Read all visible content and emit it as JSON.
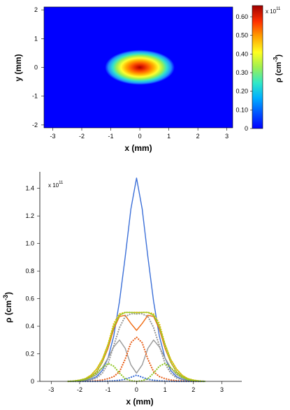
{
  "chart_data": [
    {
      "type": "heatmap",
      "xlabel": "x (mm)",
      "ylabel": "y (mm)",
      "xlim": [
        -3.3,
        3.2
      ],
      "ylim": [
        -2.1,
        2.1
      ],
      "xticks": [
        "-3",
        "-2",
        "-1",
        "0",
        "1",
        "2",
        "3"
      ],
      "yticks": [
        "-2",
        "-1",
        "0",
        "1",
        "2"
      ],
      "colormap": "jet",
      "colorbar": {
        "label": "ρ (cm",
        "label_sup": "-3",
        "label_end": ")",
        "multiplier": "x 10",
        "multiplier_exp": "11",
        "range": [
          0,
          0.66
        ],
        "ticks": [
          "0",
          "0.10",
          "0.20",
          "0.30",
          "0.40",
          "0.50",
          "0.60"
        ]
      },
      "blob": {
        "center_x": 0,
        "center_y": 0,
        "sigma_x": 0.75,
        "sigma_y": 0.38,
        "peak": 0.66,
        "background_color": "#0000ff"
      }
    },
    {
      "type": "line",
      "xlabel": "x (mm)",
      "ylabel": "ρ (cm",
      "ylabel_sup": "-3",
      "ylabel_end": ")",
      "multiplier": "x 10",
      "multiplier_exp": "11",
      "xlim": [
        -3.4,
        3.7
      ],
      "ylim": [
        0,
        1.52
      ],
      "xticks": [
        "-3",
        "-2",
        "-1",
        "0",
        "1",
        "2",
        "3"
      ],
      "yticks": [
        "0",
        "0.2",
        "0.4",
        "0.6",
        "0.8",
        "1.0",
        "1.2",
        "1.4"
      ],
      "x": [
        -2.4,
        -2.2,
        -2.0,
        -1.8,
        -1.6,
        -1.4,
        -1.2,
        -1.0,
        -0.8,
        -0.6,
        -0.4,
        -0.2,
        0.0,
        0.2,
        0.4,
        0.6,
        0.8,
        1.0,
        1.2,
        1.4,
        1.6,
        1.8,
        2.0,
        2.2,
        2.4
      ],
      "series": [
        {
          "color": "#3b6fd8",
          "style": "solid",
          "values": [
            0.0,
            0.0,
            0.002,
            0.006,
            0.015,
            0.035,
            0.08,
            0.17,
            0.33,
            0.58,
            0.9,
            1.25,
            1.475,
            1.25,
            0.9,
            0.58,
            0.33,
            0.17,
            0.08,
            0.035,
            0.015,
            0.006,
            0.002,
            0.0,
            0.0
          ]
        },
        {
          "color": "#f06a10",
          "style": "solid",
          "values": [
            0.0,
            0.002,
            0.006,
            0.015,
            0.035,
            0.07,
            0.14,
            0.24,
            0.38,
            0.47,
            0.48,
            0.42,
            0.37,
            0.42,
            0.48,
            0.47,
            0.38,
            0.24,
            0.14,
            0.07,
            0.035,
            0.015,
            0.006,
            0.002,
            0.0
          ]
        },
        {
          "color": "#999999",
          "style": "solid",
          "values": [
            0.0,
            0.001,
            0.004,
            0.01,
            0.025,
            0.05,
            0.1,
            0.17,
            0.25,
            0.3,
            0.24,
            0.12,
            0.06,
            0.12,
            0.24,
            0.3,
            0.25,
            0.17,
            0.1,
            0.05,
            0.025,
            0.01,
            0.004,
            0.001,
            0.0
          ]
        },
        {
          "color": "#8fc620",
          "style": "solid",
          "values": [
            0.0,
            0.003,
            0.009,
            0.02,
            0.045,
            0.09,
            0.16,
            0.27,
            0.4,
            0.48,
            0.5,
            0.5,
            0.5,
            0.5,
            0.5,
            0.48,
            0.4,
            0.27,
            0.16,
            0.09,
            0.045,
            0.02,
            0.009,
            0.003,
            0.0
          ]
        },
        {
          "color": "#f0b800",
          "style": "dotted",
          "values": [
            0.0,
            0.003,
            0.009,
            0.02,
            0.045,
            0.09,
            0.16,
            0.27,
            0.42,
            0.49,
            0.5,
            0.5,
            0.5,
            0.5,
            0.5,
            0.49,
            0.42,
            0.27,
            0.16,
            0.09,
            0.045,
            0.02,
            0.009,
            0.003,
            0.0
          ]
        },
        {
          "color": "#9ccc30",
          "style": "dotted",
          "values": [
            0.0,
            0.002,
            0.006,
            0.015,
            0.035,
            0.07,
            0.14,
            0.26,
            0.4,
            0.48,
            0.5,
            0.5,
            0.49,
            0.5,
            0.5,
            0.48,
            0.4,
            0.26,
            0.14,
            0.07,
            0.035,
            0.015,
            0.006,
            0.002,
            0.0
          ]
        },
        {
          "color": "#999999",
          "style": "dotted",
          "values": [
            0.0,
            0.0,
            0.001,
            0.004,
            0.01,
            0.025,
            0.06,
            0.13,
            0.26,
            0.39,
            0.47,
            0.49,
            0.49,
            0.49,
            0.47,
            0.39,
            0.26,
            0.13,
            0.06,
            0.025,
            0.01,
            0.004,
            0.001,
            0.0,
            0.0
          ]
        },
        {
          "color": "#e8601a",
          "style": "dotted",
          "values": [
            0.0,
            0.0,
            0.0,
            0.001,
            0.002,
            0.005,
            0.01,
            0.02,
            0.035,
            0.07,
            0.16,
            0.28,
            0.32,
            0.28,
            0.16,
            0.07,
            0.035,
            0.02,
            0.01,
            0.005,
            0.002,
            0.001,
            0.0,
            0.0,
            0.0
          ]
        },
        {
          "color": "#3b6fd8",
          "style": "dotted",
          "values": [
            0.0,
            0.0,
            0.0,
            0.0,
            0.0,
            0.0,
            0.001,
            0.002,
            0.004,
            0.008,
            0.015,
            0.03,
            0.045,
            0.03,
            0.015,
            0.008,
            0.004,
            0.002,
            0.001,
            0.0,
            0.0,
            0.0,
            0.0,
            0.0,
            0.0
          ]
        },
        {
          "color": "#8fc620",
          "style": "dotted",
          "values": [
            0.0,
            0.001,
            0.004,
            0.012,
            0.03,
            0.06,
            0.1,
            0.13,
            0.11,
            0.06,
            0.02,
            0.005,
            0.0,
            0.005,
            0.02,
            0.06,
            0.11,
            0.13,
            0.1,
            0.06,
            0.03,
            0.012,
            0.004,
            0.001,
            0.0
          ]
        }
      ]
    }
  ]
}
